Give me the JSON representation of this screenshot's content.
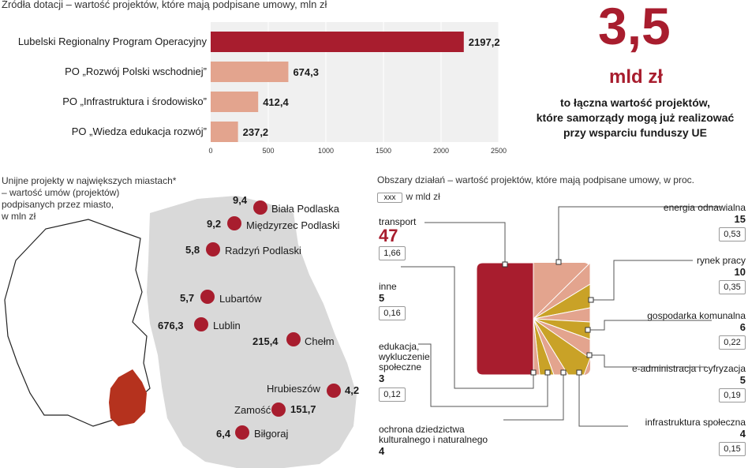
{
  "top_source": "Źródła dotacji – wartość projektów, które mają podpisane umowy, mln zł",
  "headline": {
    "value": "3,5",
    "unit": "mld zł",
    "lines": [
      "to łączna wartość projektów,",
      "które samorządy mogą już realizować",
      "przy wsparciu funduszy UE"
    ]
  },
  "map_title": [
    "Unijne projekty w największych miastach*",
    "– wartość umów (projektów)",
    "podpisanych przez miasto,",
    "w mln zł"
  ],
  "cities": [
    {
      "name": "Biała Podlaska",
      "value": "9,4"
    },
    {
      "name": "Międzyrzec Podlaski",
      "value": "9,2"
    },
    {
      "name": "Radzyń Podlaski",
      "value": "5,8"
    },
    {
      "name": "Lubartów",
      "value": "5,7"
    },
    {
      "name": "Lublin",
      "value": "676,3"
    },
    {
      "name": "Chełm",
      "value": "215,4"
    },
    {
      "name": "Hrubieszów",
      "value": "4,2"
    },
    {
      "name": "Zamość",
      "value": "151,7"
    },
    {
      "name": "Biłgoraj",
      "value": "6,4"
    }
  ],
  "areas_title": "Obszary działań – wartość projektów, które mają podpisane umowy, w proc.",
  "areas_legend_box": "xxx",
  "areas_legend_text": "w mld zł",
  "areas": [
    {
      "name": "transport",
      "pct": "47",
      "bn": "1,66"
    },
    {
      "name": "inne",
      "pct": "5",
      "bn": "0,16"
    },
    {
      "name": "edukacja, wykluczenie społeczne",
      "pct": "3",
      "bn": "0,12"
    },
    {
      "name": "ochrona dziedzictwa kulturalnego i naturalnego",
      "pct": "4",
      "bn": ""
    },
    {
      "name": "energia odnawialna",
      "pct": "15",
      "bn": "0,53"
    },
    {
      "name": "rynek pracy",
      "pct": "10",
      "bn": "0,35"
    },
    {
      "name": "gospodarka komunalna",
      "pct": "6",
      "bn": "0,22"
    },
    {
      "name": "e-administracja i cyfryzacja",
      "pct": "5",
      "bn": "0,19"
    },
    {
      "name": "infrastruktura społeczna",
      "pct": "4",
      "bn": "0,15"
    }
  ],
  "colors": {
    "accent": "#a81d2e",
    "bar_light": "#e3a48e",
    "olive": "#c9a227",
    "pink": "#e3a48e",
    "map_grey": "#d9d9d9",
    "grid": "#f0f0f0"
  },
  "chart_data": {
    "type": "bar",
    "orientation": "horizontal",
    "categories": [
      "Lubelski Regionalny Program Operacyjny",
      "PO „Rozwój Polski wschodniej”",
      "PO „Infrastruktura i środowisko”",
      "PO „Wiedza edukacja rozwój”"
    ],
    "values": [
      2197.2,
      674.3,
      412.4,
      237.2
    ],
    "value_labels": [
      "2197,2",
      "674,3",
      "412,4",
      "237,2"
    ],
    "xlim": [
      0,
      2500
    ],
    "xticks": [
      0,
      500,
      1000,
      1500,
      2000,
      2500
    ],
    "grid": true
  }
}
